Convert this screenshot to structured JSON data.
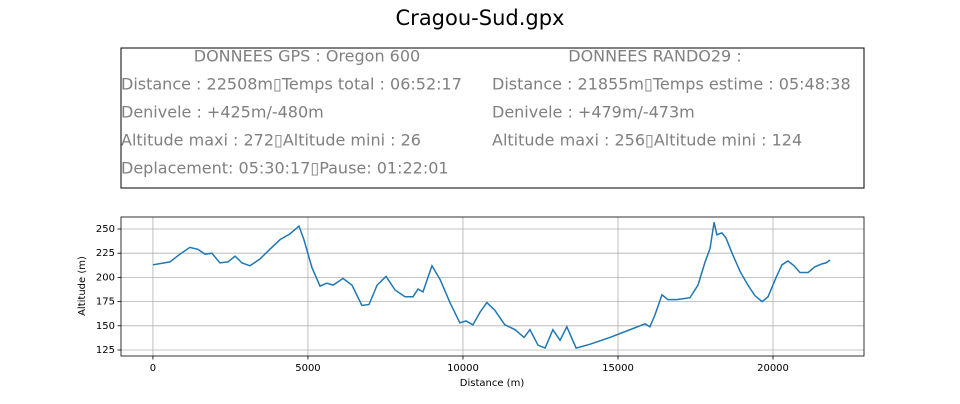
{
  "info_box": {
    "left_header": "DONNEES GPS :  Oregon 600",
    "left_lines": [
      "Distance : 22508m▯Temps total : 06:52:17",
      "Denivele : +425m/-480m",
      "Altitude maxi : 272▯Altitude mini : 26",
      "Deplacement: 05:30:17▯Pause: 01:22:01"
    ],
    "right_header": "DONNEES RANDO29  :",
    "right_lines": [
      "Distance : 21855m▯Temps estime : 05:48:38",
      "Denivele : +479m/-473m",
      "Altitude maxi : 256▯Altitude mini : 124"
    ]
  },
  "chart_data": {
    "type": "line",
    "title": "Cragou-Sud.gpx",
    "xlabel": "Distance (m)",
    "ylabel": "Altitude (m)",
    "x": [
      0,
      550,
      870,
      1190,
      1450,
      1680,
      1900,
      2160,
      2420,
      2650,
      2870,
      3130,
      3450,
      3770,
      4100,
      4420,
      4710,
      4870,
      5130,
      5390,
      5610,
      5810,
      6130,
      6420,
      6740,
      6970,
      7230,
      7520,
      7810,
      8130,
      8390,
      8550,
      8710,
      9000,
      9260,
      9580,
      9900,
      10100,
      10320,
      10550,
      10770,
      11030,
      11350,
      11680,
      11970,
      12160,
      12420,
      12650,
      12900,
      13130,
      13350,
      13650,
      14100,
      14740,
      15550,
      15870,
      16030,
      16190,
      16420,
      16610,
      16900,
      17320,
      17580,
      17810,
      17970,
      18100,
      18190,
      18350,
      18480,
      18680,
      18940,
      19190,
      19420,
      19650,
      19840,
      20100,
      20290,
      20480,
      20680,
      20870,
      21130,
      21350,
      21580,
      21710,
      21840
    ],
    "series": [
      {
        "name": "Altitude",
        "color": "#1f77b4",
        "values": [
          213,
          216,
          224,
          231,
          229,
          224,
          225,
          215,
          216,
          222,
          215,
          212,
          219,
          229,
          239,
          245,
          253,
          239,
          210,
          191,
          194,
          192,
          199,
          192,
          171,
          172,
          192,
          201,
          187,
          180,
          180,
          188,
          185,
          212,
          198,
          174,
          153,
          155,
          151,
          164,
          174,
          166,
          151,
          146,
          138,
          146,
          130,
          127,
          146,
          135,
          149,
          127,
          131,
          138,
          148,
          152,
          149,
          161,
          182,
          177,
          177,
          179,
          192,
          216,
          230,
          257,
          244,
          246,
          241,
          225,
          206,
          192,
          181,
          175,
          180,
          200,
          213,
          217,
          212,
          205,
          205,
          211,
          214,
          215,
          218
        ]
      }
    ],
    "xlim": [
      -1030,
      22935
    ],
    "ylim": [
      118.8,
      262.4
    ],
    "xticks": [
      0,
      5000,
      10000,
      15000,
      20000
    ],
    "yticks": [
      125,
      150,
      175,
      200,
      225,
      250
    ],
    "grid": true
  }
}
